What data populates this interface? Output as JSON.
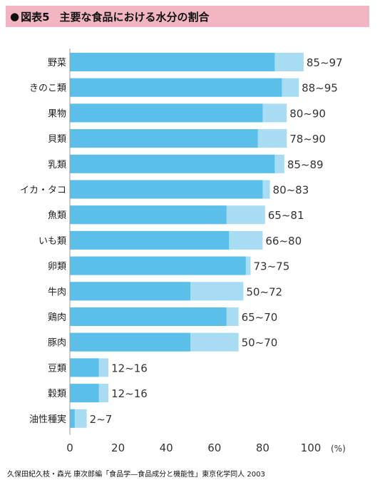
{
  "header": {
    "bullet": "●",
    "figure_number": "図表5",
    "title": "主要な食品における水分の割合"
  },
  "chart_data": {
    "type": "bar",
    "orientation": "horizontal",
    "stacked_range": true,
    "categories": [
      "野菜",
      "きのこ類",
      "果物",
      "貝類",
      "乳類",
      "イカ・タコ",
      "魚類",
      "いも類",
      "卵類",
      "牛肉",
      "鶏肉",
      "豚肉",
      "豆類",
      "穀類",
      "油性種実"
    ],
    "series": [
      {
        "role": "min",
        "values": [
          85,
          88,
          80,
          78,
          85,
          80,
          65,
          66,
          73,
          50,
          65,
          50,
          12,
          12,
          2
        ],
        "color": "#5bbfea"
      },
      {
        "role": "max",
        "values": [
          97,
          95,
          90,
          90,
          89,
          83,
          81,
          80,
          75,
          72,
          70,
          70,
          16,
          16,
          7
        ],
        "color": "#a8dcf2"
      }
    ],
    "range_labels": [
      "85~97",
      "88~95",
      "80~90",
      "78~90",
      "85~89",
      "80~83",
      "65~81",
      "66~80",
      "73~75",
      "50~72",
      "65~70",
      "50~70",
      "12~16",
      "12~16",
      "2~7"
    ],
    "xlim": [
      0,
      100
    ],
    "xticks": [
      0,
      20,
      40,
      60,
      80,
      100
    ],
    "xunit": "(%)",
    "grid": false,
    "legend": "none"
  },
  "source": "久保田紀久枝・森光 康次郎編「食品学―食品成分と機能性」東京化学同人 2003"
}
